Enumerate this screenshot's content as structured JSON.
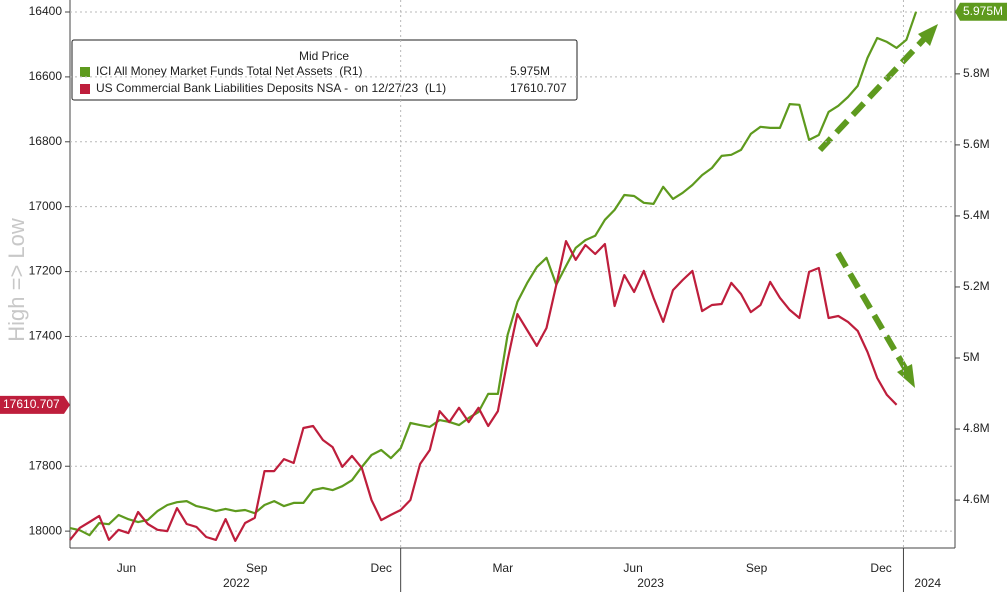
{
  "chart_data": {
    "type": "line",
    "y_label": "High => Low",
    "legend_title": "Mid Price",
    "xlim": [
      0,
      91
    ],
    "ylim": [
      16363,
      18052
    ],
    "y_inverted": true,
    "yticks": [
      16400,
      16600,
      16800,
      17000,
      17200,
      17400,
      17800,
      18000
    ],
    "y2lim": [
      4.465,
      6.008
    ],
    "y2ticks": [
      {
        "value": 4.6,
        "label": "4.6M"
      },
      {
        "value": 4.8,
        "label": "4.8M"
      },
      {
        "value": 5.0,
        "label": "5M"
      },
      {
        "value": 5.2,
        "label": "5.2M"
      },
      {
        "value": 5.4,
        "label": "5.4M"
      },
      {
        "value": 5.6,
        "label": "5.6M"
      },
      {
        "value": 5.8,
        "label": "5.8M"
      }
    ],
    "xticks": [
      {
        "value": 5.8,
        "label": "Jun"
      },
      {
        "value": 19.2,
        "label": "Sep"
      },
      {
        "value": 32.0,
        "label": "Dec"
      },
      {
        "value": 44.5,
        "label": "Mar"
      },
      {
        "value": 57.9,
        "label": "Jun"
      },
      {
        "value": 70.6,
        "label": "Sep"
      },
      {
        "value": 83.4,
        "label": "Dec"
      }
    ],
    "year_ticks": [
      {
        "value": 17.1,
        "label": "2022"
      },
      {
        "value": 59.7,
        "label": "2023"
      },
      {
        "value": 88.2,
        "label": "2024"
      }
    ],
    "year_breaks": [
      34.0,
      85.7
    ],
    "grid": true,
    "series": [
      {
        "name": "ICI All Money Market Funds Total Net Assets  (R1)",
        "color": "#5e9a1e",
        "axis": "y2",
        "last_label": "5.975M",
        "values": [
          4.521,
          4.515,
          4.501,
          4.535,
          4.532,
          4.558,
          4.546,
          4.538,
          4.544,
          4.569,
          4.586,
          4.594,
          4.597,
          4.583,
          4.577,
          4.569,
          4.575,
          4.569,
          4.572,
          4.563,
          4.586,
          4.597,
          4.583,
          4.592,
          4.592,
          4.628,
          4.634,
          4.628,
          4.639,
          4.656,
          4.693,
          4.727,
          4.741,
          4.718,
          4.746,
          4.817,
          4.811,
          4.806,
          4.825,
          4.82,
          4.811,
          4.831,
          4.848,
          4.899,
          4.899,
          5.065,
          5.158,
          5.211,
          5.256,
          5.282,
          5.206,
          5.259,
          5.31,
          5.332,
          5.344,
          5.389,
          5.417,
          5.459,
          5.456,
          5.437,
          5.434,
          5.482,
          5.448,
          5.465,
          5.487,
          5.515,
          5.535,
          5.569,
          5.572,
          5.586,
          5.631,
          5.651,
          5.648,
          5.648,
          5.715,
          5.713,
          5.614,
          5.628,
          5.693,
          5.71,
          5.735,
          5.766,
          5.845,
          5.901,
          5.89,
          5.873,
          5.896,
          5.975
        ]
      },
      {
        "name": "US Commercial Bank Liabilities Deposits NSA -  on 12/27/23  (L1)",
        "color": "#be1e3c",
        "axis": "y",
        "values": [
          18027,
          17990,
          17972,
          17953,
          18027,
          17996,
          18006,
          17941,
          17978,
          17996,
          18000,
          17929,
          17978,
          17987,
          18018,
          18027,
          17963,
          18030,
          17975,
          17959,
          17815,
          17815,
          17778,
          17790,
          17682,
          17676,
          17719,
          17741,
          17802,
          17768,
          17805,
          17904,
          17966,
          17950,
          17935,
          17904,
          17793,
          17750,
          17630,
          17664,
          17620,
          17664,
          17620,
          17676,
          17630,
          17473,
          17331,
          17380,
          17429,
          17374,
          17241,
          17106,
          17164,
          17118,
          17146,
          17115,
          17306,
          17211,
          17263,
          17198,
          17281,
          17355,
          17257,
          17226,
          17198,
          17322,
          17303,
          17300,
          17235,
          17269,
          17325,
          17303,
          17232,
          17281,
          17318,
          17343,
          17201,
          17189,
          17343,
          17337,
          17355,
          17383,
          17448,
          17528,
          17580,
          17610.707,
          null,
          null
        ]
      }
    ]
  }
}
